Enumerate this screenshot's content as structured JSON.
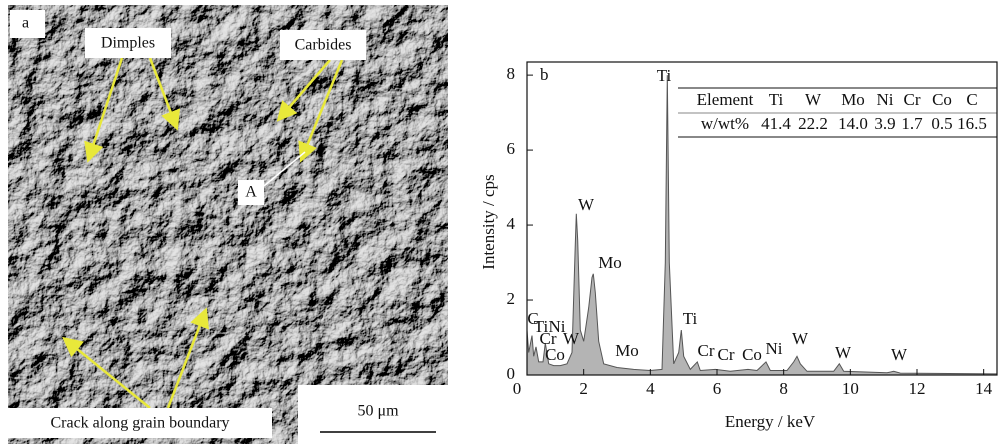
{
  "micrograph": {
    "panel_label": "a",
    "labels": [
      "Dimples",
      "Carbides",
      "A",
      "Crack along grain boundary"
    ],
    "scale_bar": "50 μm"
  },
  "chart_data": {
    "type": "area",
    "panel_label": "b",
    "xlabel": "Energy / keV",
    "ylabel": "Intensity / cps",
    "xlim": [
      0.3,
      14.4
    ],
    "ylim": [
      0,
      8.35
    ],
    "xticks": [
      0,
      2,
      4,
      6,
      8,
      10,
      12,
      14
    ],
    "yticks": [
      0,
      2,
      4,
      6,
      8
    ],
    "color": "#b4b4b4",
    "x": [
      0.3,
      0.35,
      0.45,
      0.5,
      0.57,
      0.65,
      0.78,
      0.85,
      0.95,
      1.1,
      1.3,
      1.5,
      1.65,
      1.75,
      1.78,
      1.82,
      1.9,
      2.0,
      2.15,
      2.25,
      2.29,
      2.35,
      2.45,
      2.6,
      3.0,
      3.5,
      4.0,
      4.35,
      4.45,
      4.51,
      4.57,
      4.7,
      4.85,
      4.93,
      5.0,
      5.2,
      5.41,
      5.5,
      5.95,
      6.4,
      6.93,
      7.2,
      7.47,
      7.6,
      8.1,
      8.3,
      8.4,
      8.5,
      8.7,
      9.5,
      9.67,
      9.8,
      11.1,
      11.3,
      11.5,
      14.4
    ],
    "values": [
      1.2,
      0.6,
      1.05,
      0.5,
      0.75,
      0.35,
      0.35,
      0.85,
      0.3,
      0.25,
      0.25,
      0.3,
      0.6,
      3.5,
      4.3,
      3.6,
      1.2,
      0.9,
      1.8,
      2.6,
      2.7,
      2.2,
      0.9,
      0.3,
      0.2,
      0.15,
      0.12,
      0.15,
      3.0,
      8.0,
      3.0,
      0.3,
      0.6,
      1.2,
      0.5,
      0.15,
      0.35,
      0.12,
      0.15,
      0.1,
      0.15,
      0.12,
      0.35,
      0.12,
      0.12,
      0.35,
      0.5,
      0.3,
      0.1,
      0.1,
      0.3,
      0.1,
      0.06,
      0.1,
      0.05,
      0.03
    ],
    "annotations": [
      "C",
      "Ti",
      "Ni",
      "Cr",
      "W",
      "Co",
      "W",
      "Mo",
      "Mo",
      "Ti",
      "Ti",
      "Cr",
      "Cr",
      "Co",
      "Ni",
      "W",
      "W",
      "W"
    ],
    "table": {
      "header": [
        "Element",
        "Ti",
        "W",
        "Mo",
        "Ni",
        "Cr",
        "Co",
        "C"
      ],
      "row": [
        "w/wt%",
        "41.4",
        "22.2",
        "14.0",
        "3.9",
        "1.7",
        "0.5",
        "16.5"
      ]
    }
  }
}
